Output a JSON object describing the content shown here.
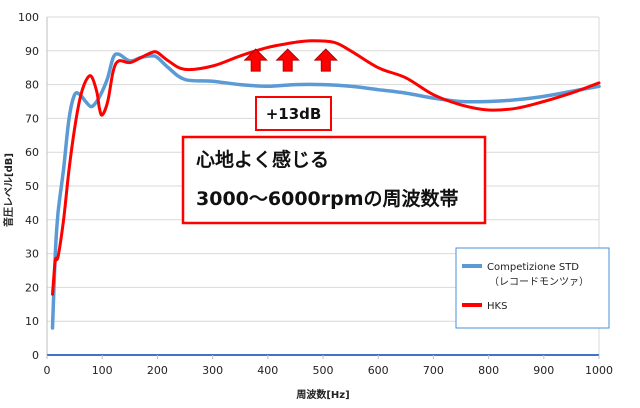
{
  "colors": {
    "std": "#5b9bd5",
    "hks": "#ff0000",
    "grid": "#d9d9d9",
    "axis": "#4472c4",
    "arrow": "#ff0000",
    "arrow_stroke": "#b00000",
    "box_border": "#ff0000",
    "legend_border": "#4a90d9"
  },
  "chart_data": {
    "type": "line",
    "xlabel": "周波数[Hz]",
    "ylabel": "音圧レベル[dB]",
    "xlim": [
      0,
      1000
    ],
    "ylim": [
      0,
      100
    ],
    "x_ticks": [
      0,
      100,
      200,
      300,
      400,
      500,
      600,
      700,
      800,
      900,
      1000
    ],
    "y_ticks": [
      0,
      10,
      20,
      30,
      40,
      50,
      60,
      70,
      80,
      90,
      100
    ],
    "grid": true,
    "legend_position": "right",
    "series": [
      {
        "name": "Competizione STD",
        "subname": "（レコードモンツァ）",
        "color": "#5b9bd5",
        "points": [
          [
            10,
            8
          ],
          [
            15,
            30
          ],
          [
            20,
            42
          ],
          [
            30,
            55
          ],
          [
            40,
            70
          ],
          [
            50,
            77
          ],
          [
            60,
            77
          ],
          [
            70,
            75
          ],
          [
            80,
            73.5
          ],
          [
            90,
            75
          ],
          [
            100,
            78
          ],
          [
            110,
            82
          ],
          [
            120,
            88
          ],
          [
            130,
            89
          ],
          [
            150,
            87
          ],
          [
            170,
            88
          ],
          [
            190,
            88.5
          ],
          [
            200,
            88
          ],
          [
            220,
            85
          ],
          [
            250,
            81.5
          ],
          [
            300,
            81
          ],
          [
            350,
            80
          ],
          [
            400,
            79.5
          ],
          [
            450,
            80
          ],
          [
            500,
            80
          ],
          [
            550,
            79.5
          ],
          [
            600,
            78.5
          ],
          [
            650,
            77.5
          ],
          [
            700,
            76
          ],
          [
            750,
            75
          ],
          [
            800,
            75
          ],
          [
            850,
            75.5
          ],
          [
            900,
            76.5
          ],
          [
            950,
            78
          ],
          [
            1000,
            79.5
          ]
        ]
      },
      {
        "name": "HKS",
        "subname": "",
        "color": "#ff0000",
        "points": [
          [
            10,
            18
          ],
          [
            15,
            28
          ],
          [
            20,
            29
          ],
          [
            30,
            40
          ],
          [
            40,
            55
          ],
          [
            50,
            67
          ],
          [
            60,
            76
          ],
          [
            70,
            81
          ],
          [
            80,
            82.5
          ],
          [
            90,
            78
          ],
          [
            95,
            73
          ],
          [
            100,
            71
          ],
          [
            110,
            75
          ],
          [
            120,
            84
          ],
          [
            130,
            87
          ],
          [
            150,
            86.5
          ],
          [
            170,
            88
          ],
          [
            190,
            89.5
          ],
          [
            200,
            89.5
          ],
          [
            220,
            87
          ],
          [
            250,
            84.5
          ],
          [
            300,
            85.5
          ],
          [
            350,
            88.5
          ],
          [
            400,
            91
          ],
          [
            450,
            92.5
          ],
          [
            480,
            93
          ],
          [
            520,
            92.5
          ],
          [
            550,
            90
          ],
          [
            600,
            85
          ],
          [
            650,
            82
          ],
          [
            700,
            77
          ],
          [
            750,
            74
          ],
          [
            800,
            72.5
          ],
          [
            850,
            73
          ],
          [
            900,
            75
          ],
          [
            950,
            77.5
          ],
          [
            1000,
            80.5
          ]
        ]
      }
    ],
    "annotations": {
      "gain_label": "+13dB",
      "headline": "心地よく感じる",
      "subline": "3000～6000rpmの周波数帯",
      "arrows_at_x": [
        378,
        436,
        505
      ],
      "arrows_base_y": 84
    }
  }
}
